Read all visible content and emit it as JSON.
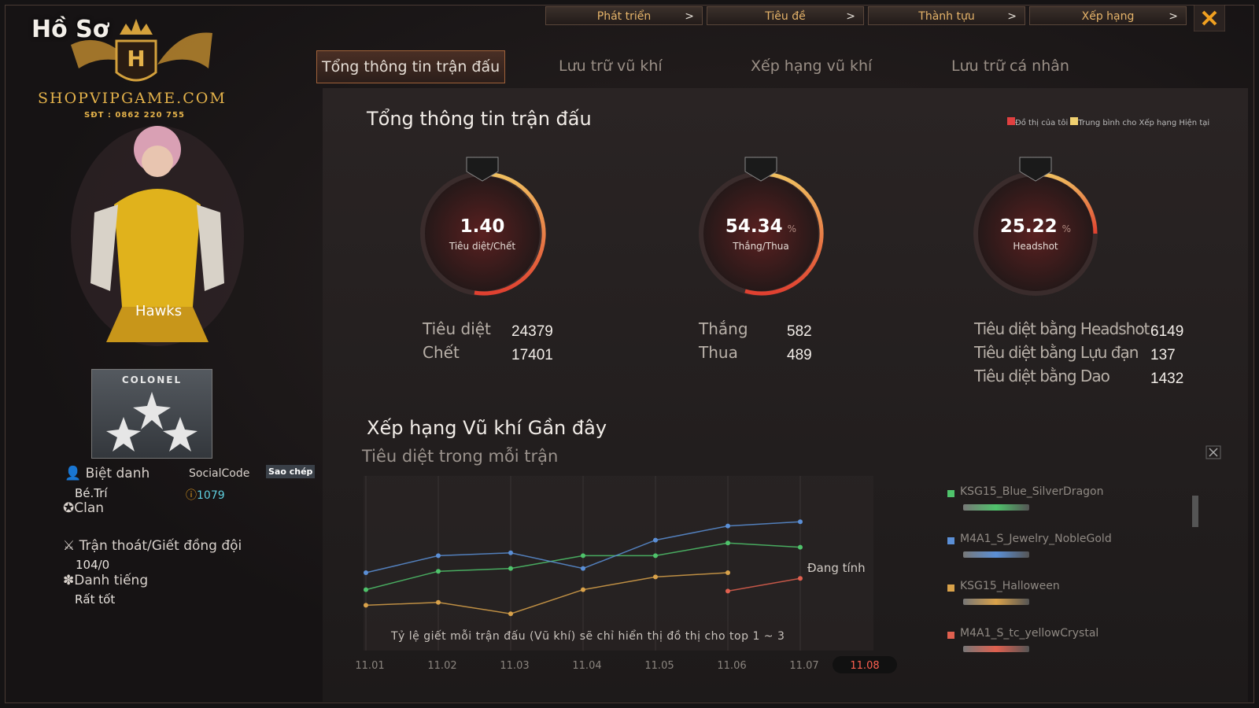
{
  "header": {
    "title": "Hồ Sơ"
  },
  "watermark": {
    "brand": "SHOPVIPGAME.COM",
    "phone": "SĐT : 0862 220 755"
  },
  "top_nav": [
    "Phát triển",
    "Tiêu đề",
    "Thành tựu",
    "Xếp hạng"
  ],
  "tabs": [
    "Tổng thông tin trận đấu",
    "Lưu trữ vũ khí",
    "Xếp hạng vũ khí",
    "Lưu trữ cá nhân"
  ],
  "active_tab": 0,
  "profile": {
    "character_name": "Hawks",
    "rank": "COLONEL",
    "nickname_label": "Biệt danh",
    "nickname": "Bé.Trí",
    "social_code_label": "SocialCode",
    "copy_button": "Sao chép",
    "social_code": 1079,
    "clan_label": "Clan",
    "desertion_label": "Trận thoát/Giết đồng đội",
    "desertion": "104/0",
    "reputation_label": "Danh tiếng",
    "reputation": "Rất tốt"
  },
  "summary": {
    "title": "Tổng thông tin trận đấu",
    "legend": [
      "Đồ thị của tôi",
      "Trung bình cho Xếp hạng Hiện tại"
    ],
    "gauges": [
      {
        "value": "1.40",
        "label": "Tiêu diệt/Chết"
      },
      {
        "value": 54.34,
        "unit": "%",
        "label": "Thắng/Thua"
      },
      {
        "value": 25.22,
        "unit": "%",
        "label": "Headshot"
      }
    ],
    "stats": [
      [
        {
          "label": "Tiêu diệt",
          "value": 24379
        },
        {
          "label": "Chết",
          "value": 17401
        }
      ],
      [
        {
          "label": "Thắng",
          "value": 582
        },
        {
          "label": "Thua",
          "value": 489
        }
      ],
      [
        {
          "label": "Tiêu diệt bằng Headshot",
          "value": 6149
        },
        {
          "label": "Tiêu diệt bằng Lựu đạn",
          "value": 137
        },
        {
          "label": "Tiêu diệt bằng Dao",
          "value": 1432
        }
      ]
    ]
  },
  "weapon_ranking": {
    "title": "Xếp hạng Vũ khí Gần đây",
    "subtitle": "Tiêu diệt trong mỗi trận",
    "note": "Tỷ lệ giết mỗi trận đấu (Vũ khí) sẽ chỉ hiển thị đồ thị cho top 1 ~ 3",
    "status": "Đang tính",
    "chart_data": {
      "type": "line",
      "categories": [
        "11.01",
        "11.02",
        "11.03",
        "11.04",
        "11.05",
        "11.06",
        "11.07",
        "11.08"
      ],
      "current": 7,
      "ylim": [
        0,
        10
      ],
      "series": [
        {
          "name": "KSG15_Blue_SilverDragon",
          "color": "#4fc36b",
          "values": [
            2.8,
            4.1,
            4.3,
            5.2,
            5.2,
            6.1,
            5.8,
            null
          ]
        },
        {
          "name": "M4A1_S_Jewelry_NobleGold",
          "color": "#5b8fd6",
          "values": [
            4.0,
            5.2,
            5.4,
            4.3,
            6.3,
            7.3,
            7.6,
            null
          ]
        },
        {
          "name": "KSG15_Halloween",
          "color": "#d9a24a",
          "values": [
            1.7,
            1.9,
            1.1,
            2.8,
            3.7,
            4.0,
            null,
            null
          ]
        },
        {
          "name": "M4A1_S_tc_yellowCrystal",
          "color": "#e0604f",
          "values": [
            null,
            null,
            null,
            null,
            null,
            2.7,
            3.6,
            null
          ]
        }
      ]
    }
  }
}
